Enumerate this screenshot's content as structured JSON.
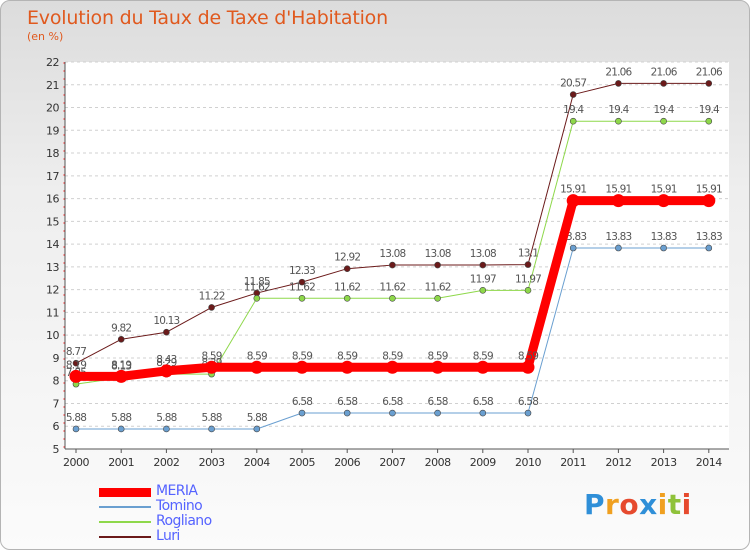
{
  "title": "Evolution du Taux de Taxe d'Habitation",
  "subtitle": "(en %)",
  "logo": {
    "letters": [
      {
        "ch": "P",
        "color": "#2f8fd8"
      },
      {
        "ch": "r",
        "color": "#f0a020"
      },
      {
        "ch": "o",
        "color": "#e64a2e"
      },
      {
        "ch": "x",
        "color": "#2f8fd8"
      },
      {
        "ch": "i",
        "color": "#f0a020"
      },
      {
        "ch": "t",
        "color": "#8fc23a"
      },
      {
        "ch": "i",
        "color": "#e64a2e"
      }
    ]
  },
  "chart_data": {
    "type": "line",
    "title": "Evolution du Taux de Taxe d'Habitation",
    "ylabel": "(en %)",
    "xlabel": "",
    "x": [
      "2000",
      "2001",
      "2002",
      "2003",
      "2004",
      "2005",
      "2006",
      "2007",
      "2008",
      "2009",
      "2010",
      "2011",
      "2012",
      "2013",
      "2014"
    ],
    "ylim": [
      5,
      22
    ],
    "yticks": [
      5,
      6,
      7,
      8,
      9,
      10,
      11,
      12,
      13,
      14,
      15,
      16,
      17,
      18,
      19,
      20,
      21,
      22
    ],
    "grid": "horizontal dashed",
    "legend_position": "bottom-left",
    "series": [
      {
        "name": "Luri",
        "color": "#6b1a1a",
        "width": 1,
        "values": [
          8.77,
          9.82,
          10.13,
          11.22,
          11.85,
          12.33,
          12.92,
          13.08,
          13.08,
          13.08,
          13.1,
          20.57,
          21.06,
          21.06,
          21.06
        ],
        "labels": [
          "8.77",
          "9.82",
          "10.13",
          "11.22",
          "11.85",
          "12.33",
          "12.92",
          "13.08",
          "13.08",
          "13.08",
          "13.1",
          "20.57",
          "21.06",
          "21.06",
          "21.06"
        ]
      },
      {
        "name": "Rogliano",
        "color": "#8ed84a",
        "width": 1,
        "values": [
          7.85,
          8.13,
          8.29,
          8.29,
          11.62,
          11.62,
          11.62,
          11.62,
          11.62,
          11.97,
          11.97,
          19.4,
          19.4,
          19.4,
          19.4
        ],
        "labels": [
          "7.85",
          "8.13",
          "8.29",
          "8.29",
          "11.62",
          "11.62",
          "11.62",
          "11.62",
          "11.62",
          "11.97",
          "11.97",
          "19.4",
          "19.4",
          "19.4",
          "19.4"
        ]
      },
      {
        "name": "Tomino",
        "color": "#6a9fd0",
        "width": 1,
        "values": [
          5.88,
          5.88,
          5.88,
          5.88,
          5.88,
          6.58,
          6.58,
          6.58,
          6.58,
          6.58,
          6.58,
          13.83,
          13.83,
          13.83,
          13.83
        ],
        "labels": [
          "5.88",
          "5.88",
          "5.88",
          "5.88",
          "5.88",
          "6.58",
          "6.58",
          "6.58",
          "6.58",
          "6.58",
          "6.58",
          "13.83",
          "13.83",
          "13.83",
          "13.83"
        ]
      },
      {
        "name": "MERIA",
        "color": "#ff0000",
        "width": 9,
        "values": [
          8.19,
          8.19,
          8.43,
          8.59,
          8.59,
          8.59,
          8.59,
          8.59,
          8.59,
          8.59,
          8.59,
          15.91,
          15.91,
          15.91,
          15.91
        ],
        "labels": [
          "8.19",
          "8.19",
          "8.43",
          "8.59",
          "8.59",
          "8.59",
          "8.59",
          "8.59",
          "8.59",
          "8.59",
          "8.59",
          "15.91",
          "15.91",
          "15.91",
          "15.91"
        ]
      }
    ],
    "legend": [
      "MERIA",
      "Tomino",
      "Rogliano",
      "Luri"
    ]
  }
}
